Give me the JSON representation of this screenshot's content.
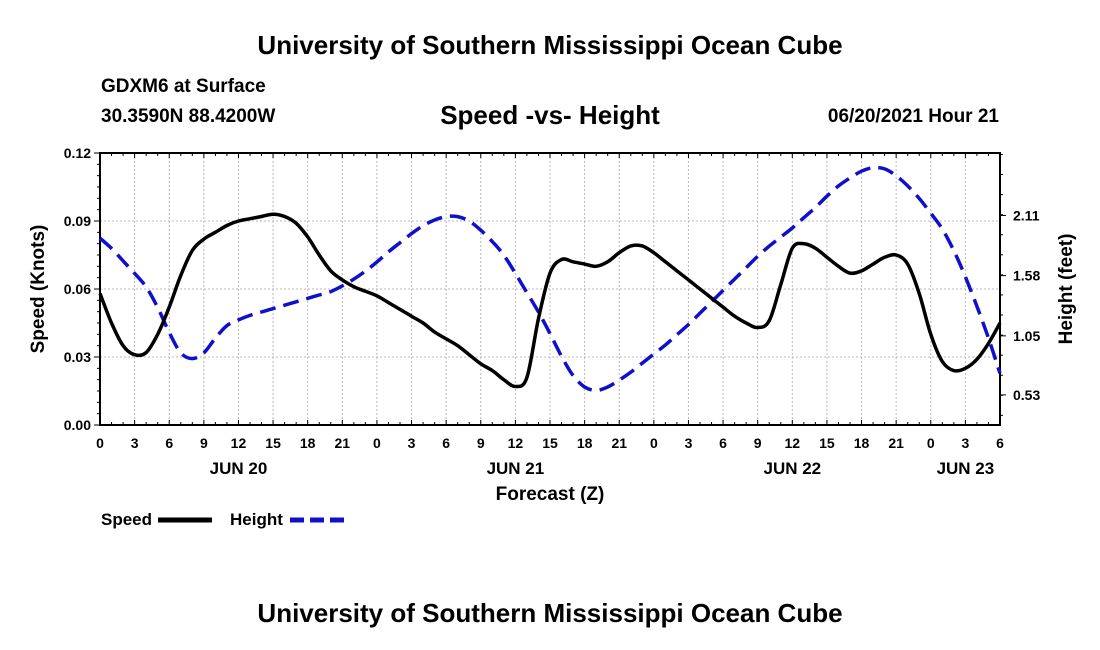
{
  "header": {
    "title": "University of Southern Mississippi Ocean Cube",
    "station": "GDXM6 at Surface",
    "coordinates": "30.3590N  88.4200W",
    "date_hour": "06/20/2021 Hour 21"
  },
  "footer": {
    "title": "University of Southern Mississippi Ocean Cube"
  },
  "colors": {
    "speed": "#000000",
    "height": "#1010cc",
    "grid": "#b8b8b8"
  },
  "chart_data": {
    "type": "line",
    "title": "Speed -vs- Height",
    "xlabel": "Forecast (Z)",
    "ylabel": "Speed (Knots)",
    "y2label": "Height (feet)",
    "x_unit": "forecast hours from 2021-06-20 00Z",
    "xlim": [
      0,
      78
    ],
    "ylim": [
      0,
      0.12
    ],
    "y2lim": [
      0.265,
      2.66
    ],
    "x_ticks": [
      0,
      3,
      6,
      9,
      12,
      15,
      18,
      21,
      24,
      27,
      30,
      33,
      36,
      39,
      42,
      45,
      48,
      51,
      54,
      57,
      60,
      63,
      66,
      69,
      72,
      75,
      78
    ],
    "x_tick_labels": [
      "0",
      "3",
      "6",
      "9",
      "12",
      "15",
      "18",
      "21",
      "0",
      "3",
      "6",
      "9",
      "12",
      "15",
      "18",
      "21",
      "0",
      "3",
      "6",
      "9",
      "12",
      "15",
      "18",
      "21",
      "0",
      "3",
      "6"
    ],
    "y_ticks": [
      0,
      0.03,
      0.06,
      0.09,
      0.12
    ],
    "y_tick_labels": [
      "0.00",
      "0.03",
      "0.06",
      "0.09",
      "0.12"
    ],
    "y2_ticks": [
      0.53,
      1.05,
      1.58,
      2.11
    ],
    "y2_tick_labels": [
      "0.53",
      "1.05",
      "1.58",
      "2.11"
    ],
    "day_labels": [
      {
        "x": 12,
        "label": "JUN 20"
      },
      {
        "x": 36,
        "label": "JUN 21"
      },
      {
        "x": 60,
        "label": "JUN 22"
      },
      {
        "x": 75,
        "label": "JUN 23"
      }
    ],
    "grid": true,
    "legend_position": "bottom-left",
    "series": [
      {
        "name": "Speed",
        "axis": "left",
        "style": "solid",
        "x": [
          0,
          1,
          2,
          3,
          4,
          5,
          6,
          7,
          8,
          9,
          10,
          11,
          12,
          13,
          14,
          15,
          16,
          17,
          18,
          19,
          20,
          21,
          22,
          23,
          24,
          25,
          26,
          27,
          28,
          29,
          30,
          31,
          32,
          33,
          34,
          35,
          36,
          37,
          38,
          39,
          40,
          41,
          42,
          43,
          44,
          45,
          46,
          47,
          48,
          49,
          50,
          51,
          52,
          53,
          54,
          55,
          56,
          57,
          58,
          59,
          60,
          61,
          62,
          63,
          64,
          65,
          66,
          67,
          68,
          69,
          70,
          71,
          72,
          73,
          74,
          75,
          76,
          77,
          78
        ],
        "values": [
          0.058,
          0.045,
          0.035,
          0.031,
          0.032,
          0.04,
          0.052,
          0.066,
          0.077,
          0.082,
          0.085,
          0.088,
          0.09,
          0.091,
          0.092,
          0.093,
          0.092,
          0.089,
          0.083,
          0.075,
          0.068,
          0.064,
          0.061,
          0.059,
          0.057,
          0.054,
          0.051,
          0.048,
          0.045,
          0.041,
          0.038,
          0.035,
          0.031,
          0.027,
          0.024,
          0.02,
          0.017,
          0.021,
          0.047,
          0.067,
          0.073,
          0.072,
          0.071,
          0.07,
          0.072,
          0.076,
          0.079,
          0.079,
          0.076,
          0.072,
          0.068,
          0.064,
          0.06,
          0.056,
          0.052,
          0.048,
          0.045,
          0.043,
          0.046,
          0.062,
          0.078,
          0.08,
          0.078,
          0.074,
          0.07,
          0.067,
          0.068,
          0.071,
          0.074,
          0.075,
          0.071,
          0.058,
          0.04,
          0.028,
          0.024,
          0.025,
          0.029,
          0.036,
          0.045
        ]
      },
      {
        "name": "Height",
        "axis": "right",
        "style": "dashed",
        "x": [
          0,
          1,
          2,
          3,
          4,
          5,
          6,
          7,
          8,
          9,
          10,
          11,
          12,
          13,
          14,
          15,
          16,
          17,
          18,
          19,
          20,
          21,
          22,
          23,
          24,
          25,
          26,
          27,
          28,
          29,
          30,
          31,
          32,
          33,
          34,
          35,
          36,
          37,
          38,
          39,
          40,
          41,
          42,
          43,
          44,
          45,
          46,
          47,
          48,
          49,
          50,
          51,
          52,
          53,
          54,
          55,
          56,
          57,
          58,
          59,
          60,
          61,
          62,
          63,
          64,
          65,
          66,
          67,
          68,
          69,
          70,
          71,
          72,
          73,
          74,
          75,
          76,
          77,
          78
        ],
        "values": [
          1.91,
          1.82,
          1.71,
          1.6,
          1.48,
          1.3,
          1.08,
          0.9,
          0.85,
          0.9,
          1.03,
          1.14,
          1.19,
          1.23,
          1.26,
          1.29,
          1.32,
          1.35,
          1.38,
          1.41,
          1.44,
          1.49,
          1.55,
          1.62,
          1.7,
          1.79,
          1.87,
          1.95,
          2.02,
          2.07,
          2.1,
          2.1,
          2.06,
          1.98,
          1.88,
          1.76,
          1.6,
          1.43,
          1.26,
          1.07,
          0.87,
          0.7,
          0.6,
          0.57,
          0.6,
          0.66,
          0.73,
          0.81,
          0.89,
          0.97,
          1.06,
          1.15,
          1.25,
          1.35,
          1.45,
          1.55,
          1.65,
          1.75,
          1.84,
          1.92,
          2.0,
          2.09,
          2.18,
          2.28,
          2.37,
          2.44,
          2.5,
          2.53,
          2.52,
          2.46,
          2.37,
          2.26,
          2.13,
          1.99,
          1.8,
          1.57,
          1.31,
          1.03,
          0.72
        ]
      }
    ]
  }
}
